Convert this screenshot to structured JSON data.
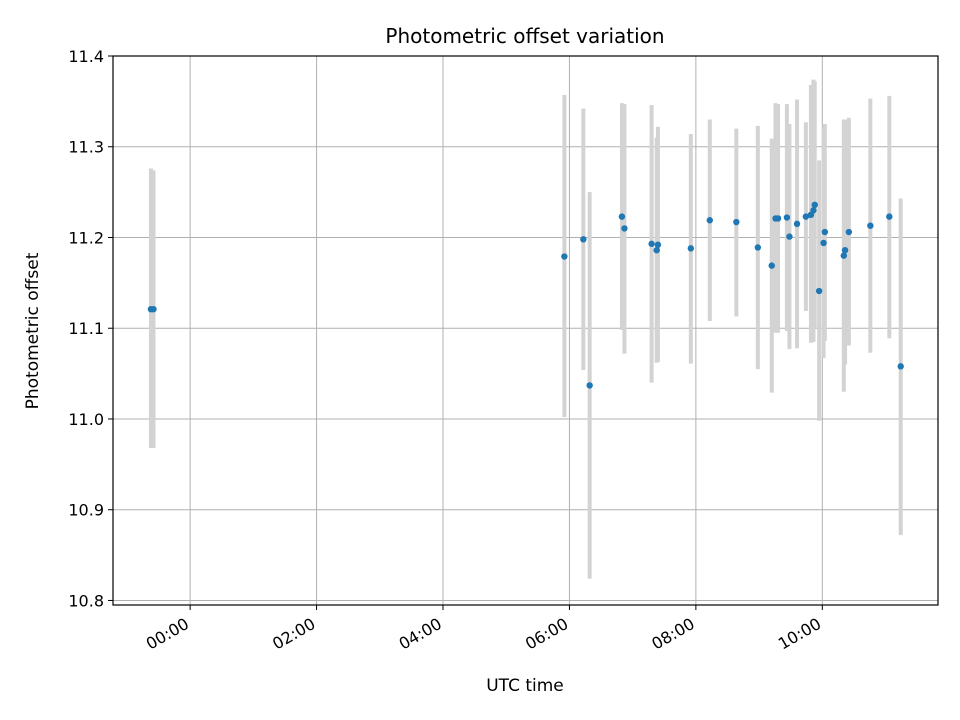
{
  "chart_data": {
    "type": "scatter",
    "title": "Photometric offset variation",
    "xlabel": "UTC time",
    "ylabel": "Photometric offset",
    "x_unit": "hours UTC",
    "xlim": [
      -1.22,
      11.83
    ],
    "ylim": [
      10.795,
      11.4
    ],
    "grid": true,
    "x_tick_values": [
      0,
      2,
      4,
      6,
      8,
      10
    ],
    "x_tick_labels": [
      "00:00",
      "02:00",
      "04:00",
      "06:00",
      "08:00",
      "10:00"
    ],
    "y_tick_values": [
      10.8,
      10.9,
      11.0,
      11.1,
      11.2,
      11.3,
      11.4
    ],
    "y_tick_labels": [
      "10.8",
      "10.9",
      "11.0",
      "11.1",
      "11.2",
      "11.3",
      "11.4"
    ],
    "colors": {
      "point": "#1f77b4",
      "errorbar": "#d3d3d3",
      "grid": "#b0b0b0",
      "axes": "#000000"
    },
    "points": [
      {
        "x": -0.62,
        "y": 11.121,
        "ylow": 10.968,
        "yhigh": 11.276
      },
      {
        "x": -0.58,
        "y": 11.121,
        "ylow": 10.968,
        "yhigh": 11.274
      },
      {
        "x": 5.92,
        "y": 11.179,
        "ylow": 11.002,
        "yhigh": 11.357
      },
      {
        "x": 6.22,
        "y": 11.198,
        "ylow": 11.054,
        "yhigh": 11.342
      },
      {
        "x": 6.32,
        "y": 11.037,
        "ylow": 10.824,
        "yhigh": 11.25
      },
      {
        "x": 6.83,
        "y": 11.223,
        "ylow": 11.098,
        "yhigh": 11.348
      },
      {
        "x": 6.87,
        "y": 11.21,
        "ylow": 11.072,
        "yhigh": 11.347
      },
      {
        "x": 7.3,
        "y": 11.193,
        "ylow": 11.04,
        "yhigh": 11.346
      },
      {
        "x": 7.38,
        "y": 11.186,
        "ylow": 11.062,
        "yhigh": 11.31
      },
      {
        "x": 7.4,
        "y": 11.192,
        "ylow": 11.063,
        "yhigh": 11.322
      },
      {
        "x": 7.92,
        "y": 11.188,
        "ylow": 11.061,
        "yhigh": 11.314
      },
      {
        "x": 8.22,
        "y": 11.219,
        "ylow": 11.108,
        "yhigh": 11.33
      },
      {
        "x": 8.64,
        "y": 11.217,
        "ylow": 11.113,
        "yhigh": 11.32
      },
      {
        "x": 8.98,
        "y": 11.189,
        "ylow": 11.055,
        "yhigh": 11.323
      },
      {
        "x": 9.2,
        "y": 11.169,
        "ylow": 11.029,
        "yhigh": 11.309
      },
      {
        "x": 9.26,
        "y": 11.221,
        "ylow": 11.095,
        "yhigh": 11.348
      },
      {
        "x": 9.3,
        "y": 11.221,
        "ylow": 11.095,
        "yhigh": 11.347
      },
      {
        "x": 9.44,
        "y": 11.222,
        "ylow": 11.097,
        "yhigh": 11.347
      },
      {
        "x": 9.48,
        "y": 11.201,
        "ylow": 11.077,
        "yhigh": 11.325
      },
      {
        "x": 9.6,
        "y": 11.215,
        "ylow": 11.078,
        "yhigh": 11.352
      },
      {
        "x": 9.74,
        "y": 11.223,
        "ylow": 11.119,
        "yhigh": 11.327
      },
      {
        "x": 9.82,
        "y": 11.225,
        "ylow": 11.084,
        "yhigh": 11.368
      },
      {
        "x": 9.86,
        "y": 11.23,
        "ylow": 11.085,
        "yhigh": 11.374
      },
      {
        "x": 9.88,
        "y": 11.236,
        "ylow": 11.1,
        "yhigh": 11.372
      },
      {
        "x": 9.95,
        "y": 11.141,
        "ylow": 10.998,
        "yhigh": 11.285
      },
      {
        "x": 10.02,
        "y": 11.194,
        "ylow": 11.067,
        "yhigh": 11.321
      },
      {
        "x": 10.04,
        "y": 11.206,
        "ylow": 11.086,
        "yhigh": 11.325
      },
      {
        "x": 10.34,
        "y": 11.18,
        "ylow": 11.03,
        "yhigh": 11.33
      },
      {
        "x": 10.36,
        "y": 11.186,
        "ylow": 11.06,
        "yhigh": 11.33
      },
      {
        "x": 10.42,
        "y": 11.206,
        "ylow": 11.081,
        "yhigh": 11.332
      },
      {
        "x": 10.76,
        "y": 11.213,
        "ylow": 11.073,
        "yhigh": 11.353
      },
      {
        "x": 11.06,
        "y": 11.223,
        "ylow": 11.089,
        "yhigh": 11.356
      },
      {
        "x": 11.24,
        "y": 11.058,
        "ylow": 10.872,
        "yhigh": 11.243
      }
    ]
  }
}
